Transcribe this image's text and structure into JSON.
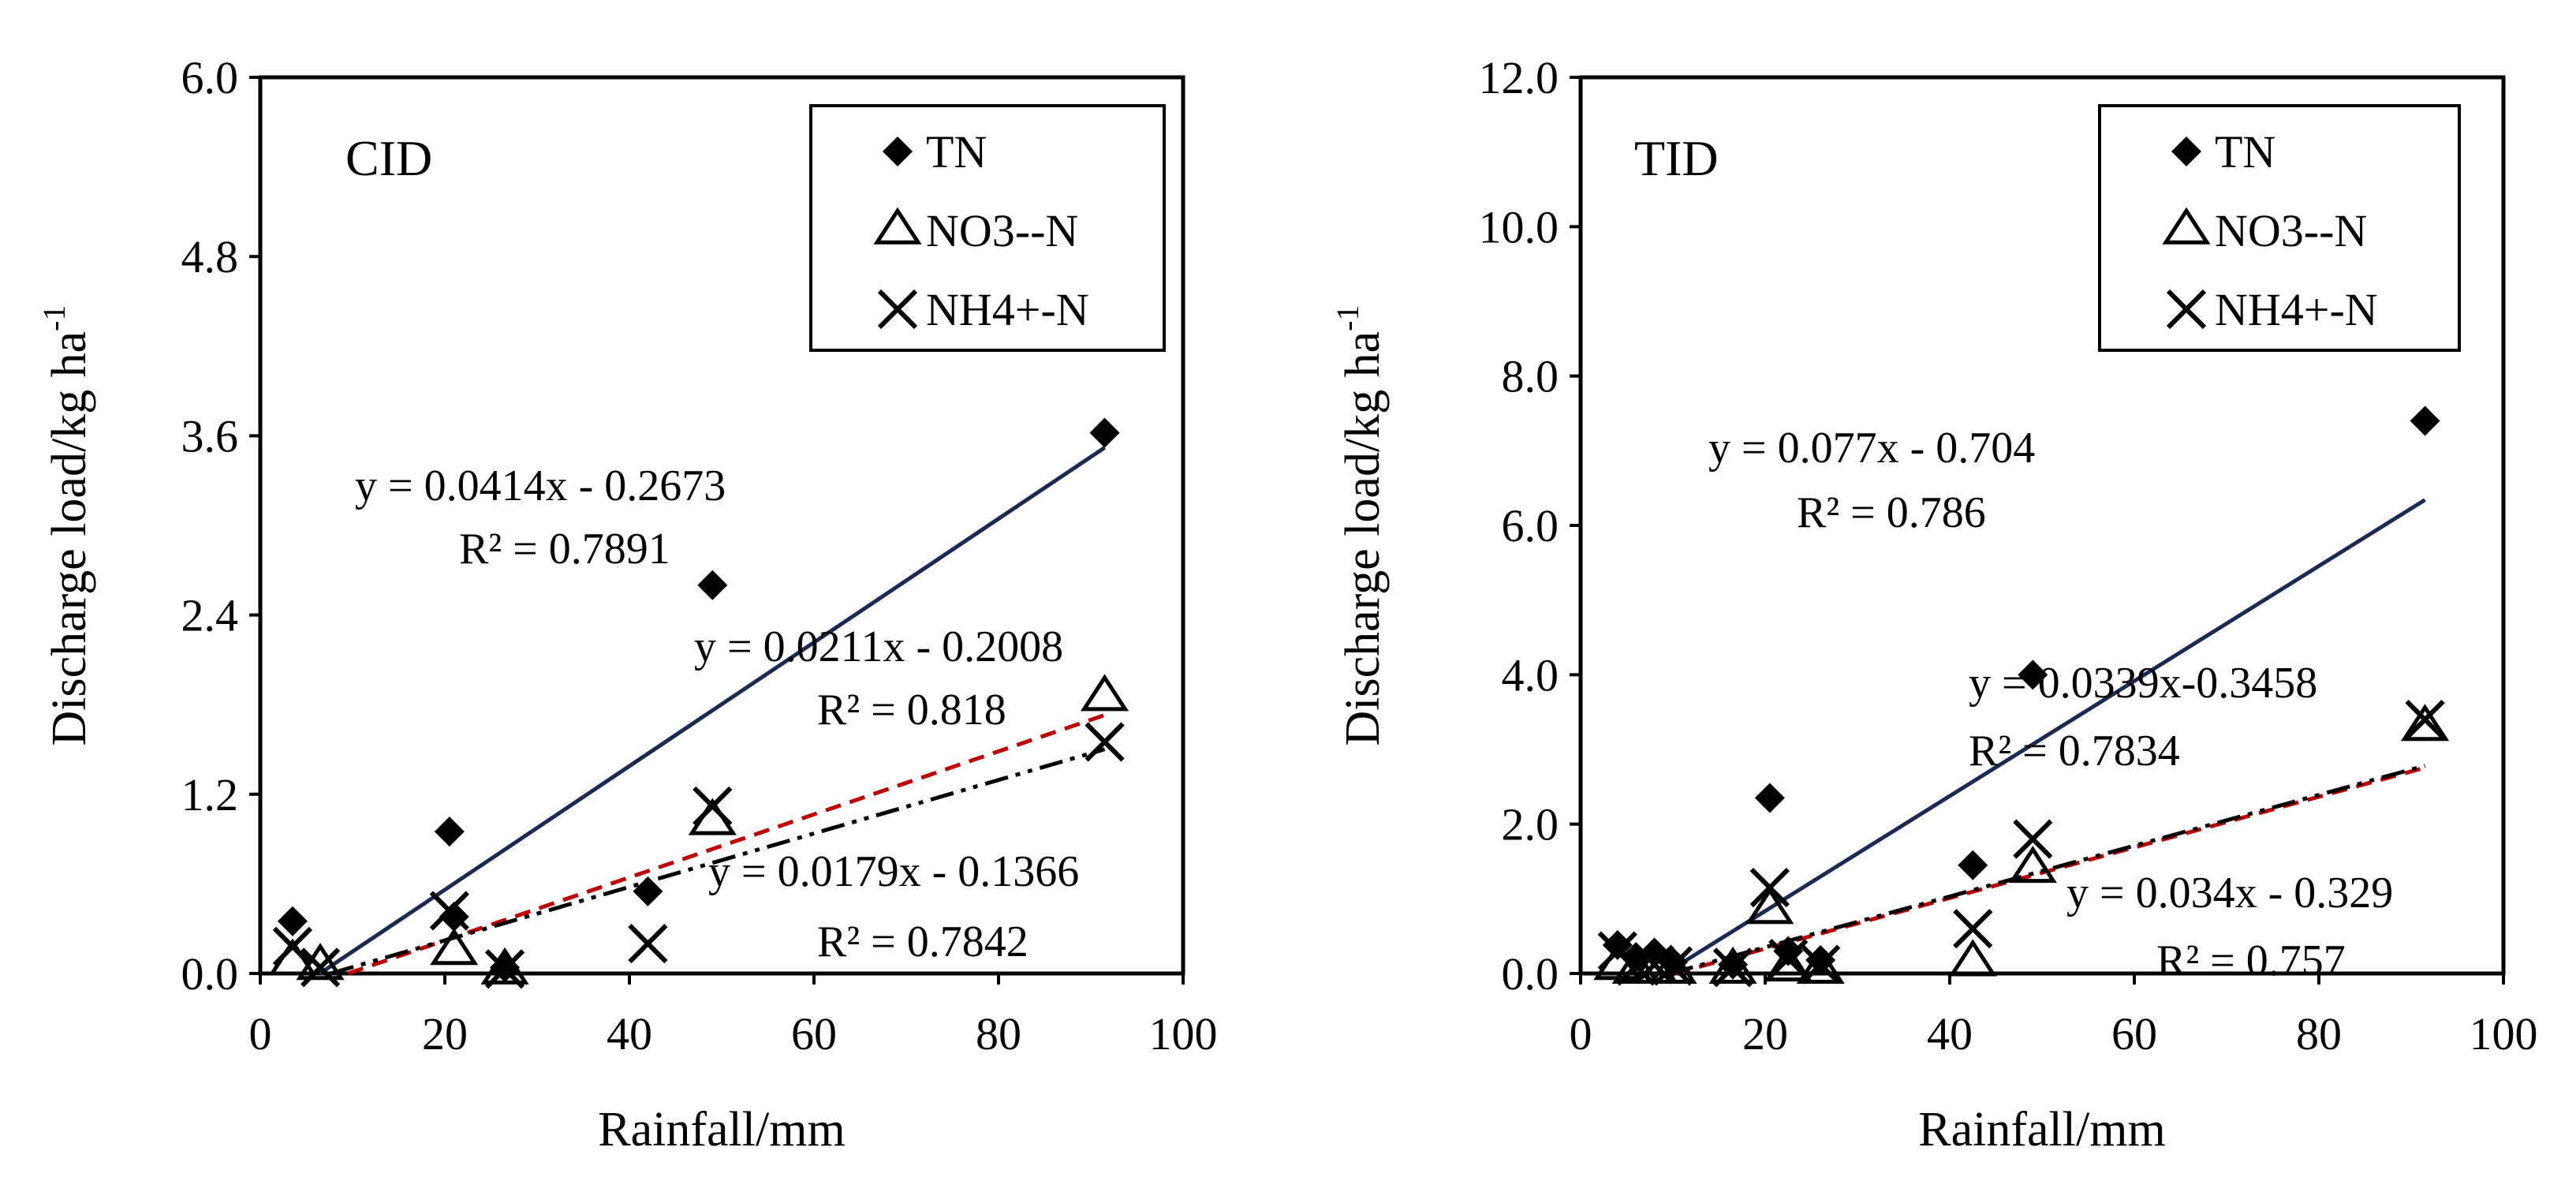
{
  "chart_data": [
    {
      "type": "scatter",
      "panel_label": "CID",
      "xlabel": "Rainfall/mm",
      "ylabel": "Discharge load/kg ha",
      "ylabel_superscript": "-1",
      "xlim": [
        0,
        100
      ],
      "ylim": [
        0,
        6
      ],
      "x_ticks": [
        "0",
        "20",
        "40",
        "60",
        "80",
        "100"
      ],
      "y_ticks": [
        "0.0",
        "1.2",
        "2.4",
        "3.6",
        "4.8",
        "6.0"
      ],
      "legend_position": "top-right",
      "series": [
        {
          "name": "TN",
          "marker": "diamond",
          "x": [
            3.5,
            20.5,
            21,
            26.5,
            42,
            49,
            91.5
          ],
          "y": [
            0.35,
            0.95,
            0.38,
            0.04,
            0.55,
            2.6,
            3.62
          ]
        },
        {
          "name": "NO3--N",
          "marker": "triangle",
          "x": [
            3.5,
            6.5,
            21,
            26.5,
            49,
            91.5
          ],
          "y": [
            0.08,
            0.05,
            0.15,
            0.02,
            1.02,
            1.85
          ]
        },
        {
          "name": "NH4+-N",
          "marker": "x",
          "x": [
            3.5,
            6.5,
            20.5,
            26.5,
            42,
            49,
            91.5
          ],
          "y": [
            0.18,
            0.04,
            0.42,
            0.03,
            0.2,
            1.12,
            1.55
          ]
        }
      ],
      "trendlines": [
        {
          "series": "TN",
          "slope": 0.0414,
          "intercept": -0.2673,
          "x_range": [
            6.46,
            91.5
          ],
          "color": "#1a2a52",
          "dash": "solid",
          "equation": "y = 0.0414x - 0.2673",
          "r2": "R² = 0.7891"
        },
        {
          "series": "NO3--N",
          "slope": 0.0211,
          "intercept": -0.2008,
          "x_range": [
            9.52,
            91.5
          ],
          "color": "#c00000",
          "dash": "dash",
          "equation": "y = 0.0211x - 0.2008",
          "r2": "R² = 0.818"
        },
        {
          "series": "NH4+-N",
          "slope": 0.0179,
          "intercept": -0.1366,
          "x_range": [
            7.63,
            91.5
          ],
          "color": "#000000",
          "dash": "dashdotdot",
          "equation": "y = 0.0179x - 0.1366",
          "r2": "R² = 0.7842"
        }
      ]
    },
    {
      "type": "scatter",
      "panel_label": "TID",
      "xlabel": "Rainfall/mm",
      "ylabel": "Discharge load/kg ha",
      "ylabel_superscript": "-1",
      "xlim": [
        0,
        100
      ],
      "ylim": [
        0,
        12
      ],
      "x_ticks": [
        "0",
        "20",
        "40",
        "60",
        "80",
        "100"
      ],
      "y_ticks": [
        "0.0",
        "2.0",
        "4.0",
        "6.0",
        "8.0",
        "10.0",
        "12.0"
      ],
      "legend_position": "top-right",
      "series": [
        {
          "name": "TN",
          "marker": "diamond",
          "x": [
            4,
            6,
            8,
            10,
            16.5,
            20.5,
            22.5,
            26,
            42.5,
            49,
            91.5
          ],
          "y": [
            0.38,
            0.22,
            0.28,
            0.15,
            0.12,
            2.35,
            0.3,
            0.18,
            1.45,
            4.0,
            7.4
          ]
        },
        {
          "name": "NO3--N",
          "marker": "triangle",
          "x": [
            4,
            6,
            8,
            10,
            16.5,
            20.5,
            22.5,
            26,
            42.5,
            49,
            91.5
          ],
          "y": [
            0.1,
            0.05,
            0.05,
            0.05,
            0.05,
            0.85,
            0.08,
            0.05,
            0.15,
            1.4,
            3.3
          ]
        },
        {
          "name": "NH4+-N",
          "marker": "x",
          "x": [
            4,
            6,
            8,
            10,
            16.5,
            20.5,
            22.5,
            26,
            42.5,
            49,
            91.5
          ],
          "y": [
            0.3,
            0.1,
            0.12,
            0.1,
            0.08,
            1.15,
            0.2,
            0.12,
            0.6,
            1.8,
            3.4
          ]
        }
      ],
      "trendlines": [
        {
          "series": "TN",
          "slope": 0.077,
          "intercept": -0.704,
          "x_range": [
            9.14,
            91.5
          ],
          "color": "#1a2a52",
          "dash": "solid",
          "equation": "y = 0.077x - 0.704",
          "r2": "R² = 0.786"
        },
        {
          "series": "NO3--N",
          "slope": 0.0339,
          "intercept": -0.3458,
          "x_range": [
            10.2,
            91.5
          ],
          "color": "#c00000",
          "dash": "dash",
          "equation": "y = 0.0339x-0.3458",
          "r2": "R² = 0.7834"
        },
        {
          "series": "NH4+-N",
          "slope": 0.034,
          "intercept": -0.329,
          "x_range": [
            9.68,
            91.5
          ],
          "color": "#000000",
          "dash": "dashdotdot",
          "equation": "y = 0.034x - 0.329",
          "r2": "R² = 0.757"
        }
      ]
    }
  ]
}
